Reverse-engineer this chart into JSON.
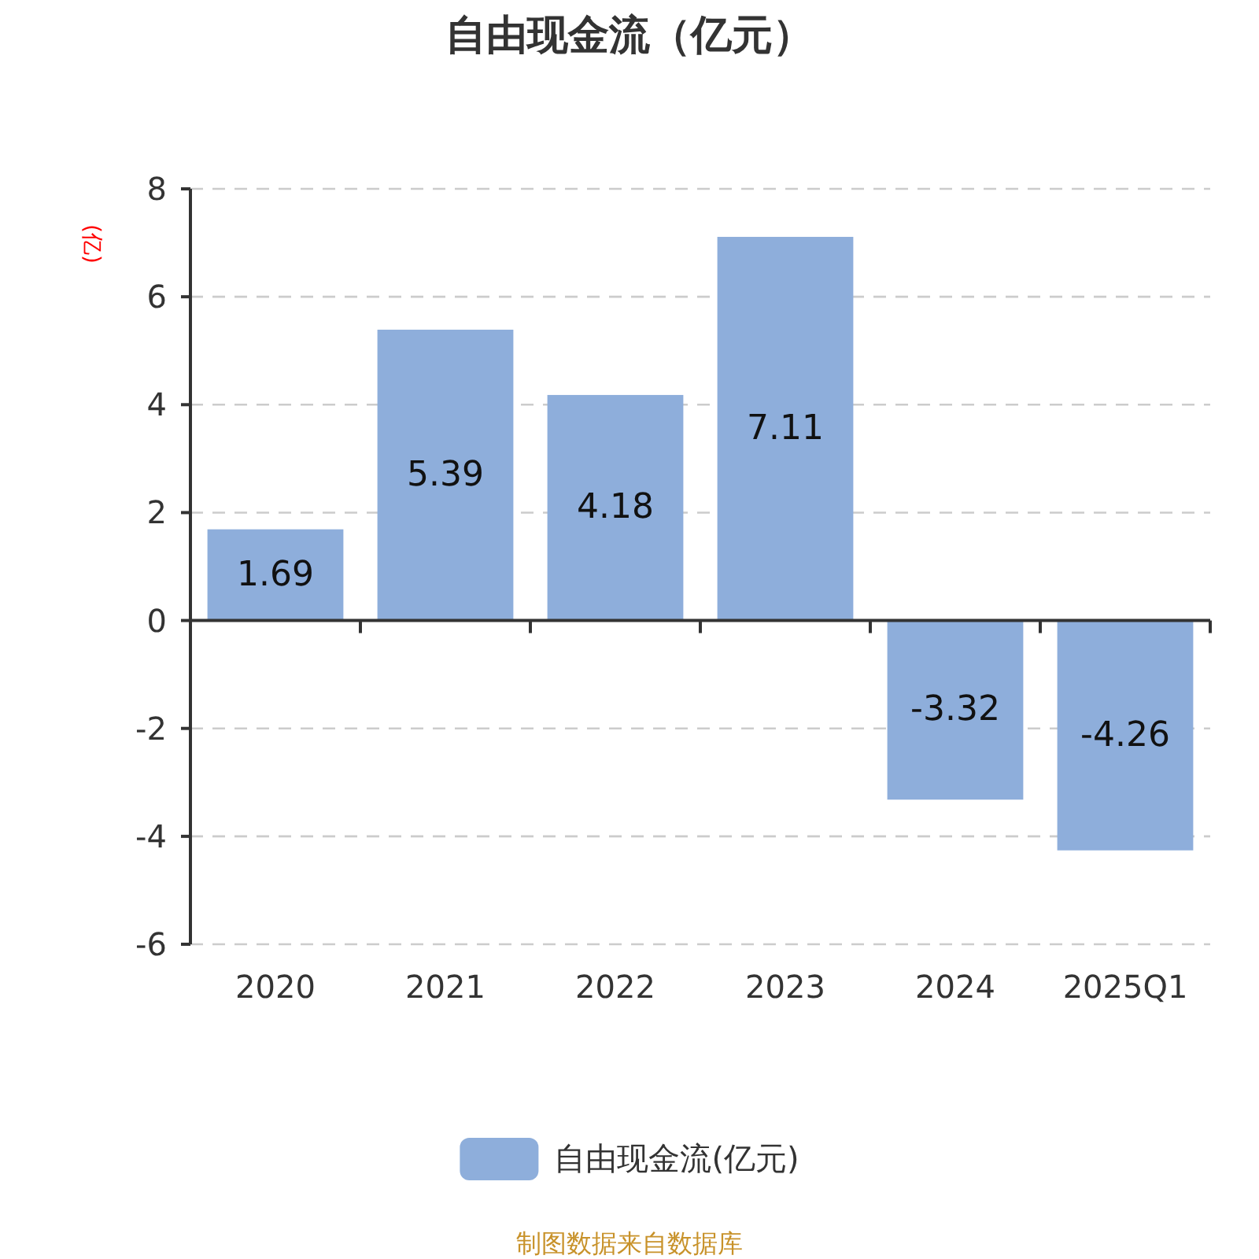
{
  "chart_data": {
    "type": "bar",
    "title": "自由现金流（亿元）",
    "ylabel": "(亿)",
    "categories": [
      "2020",
      "2021",
      "2022",
      "2023",
      "2024",
      "2025Q1"
    ],
    "series": [
      {
        "name": "自由现金流(亿元)",
        "color": "#8eaedb",
        "values": [
          1.69,
          5.39,
          4.18,
          7.11,
          -3.32,
          -4.26
        ]
      }
    ],
    "ylim": [
      -6,
      8
    ],
    "yticks": [
      -6,
      -4,
      -2,
      0,
      2,
      4,
      6,
      8
    ],
    "grid": "y",
    "legend": "bottom",
    "data_labels": true,
    "annotations": [
      "制图数据来自数据库"
    ]
  }
}
